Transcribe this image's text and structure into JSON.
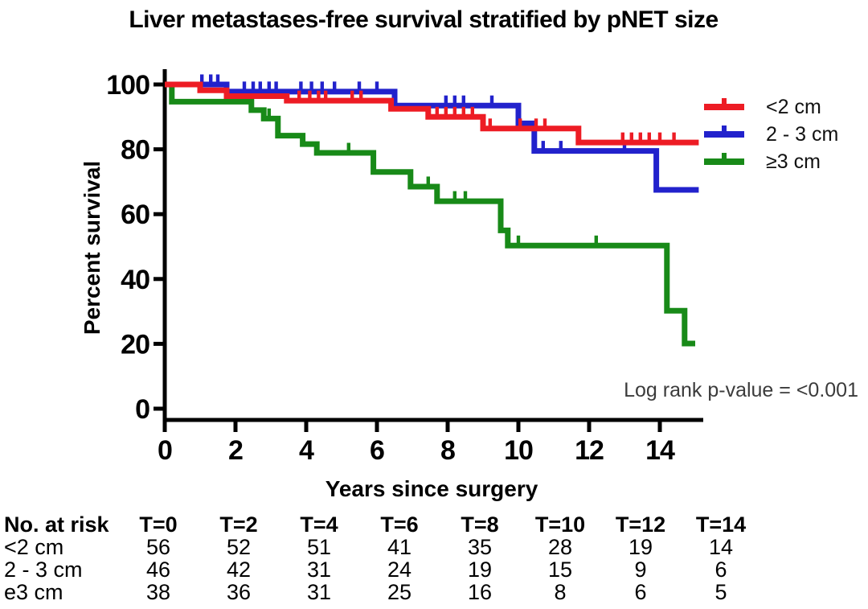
{
  "title": "Liver metastases-free survival stratified by pNET size",
  "chart_data": {
    "type": "line",
    "subtype": "kaplan-meier-step-curves",
    "title": "Liver metastases-free survival stratified by pNET size",
    "xlabel": "Years since surgery",
    "ylabel": "Percent survival",
    "xlim": [
      0,
      15.2
    ],
    "ylim": [
      0,
      100
    ],
    "xticks": [
      0,
      2,
      4,
      6,
      8,
      10,
      12,
      14
    ],
    "yticks": [
      0,
      20,
      40,
      60,
      80,
      100
    ],
    "grid": "off",
    "legend_position": "right-top",
    "annotation": "Log rank p-value = <0.001",
    "series": [
      {
        "label": "<2 cm",
        "color": "#ed1c24",
        "steps": [
          [
            0,
            100
          ],
          [
            1.0,
            98.2
          ],
          [
            1.75,
            96.4
          ],
          [
            3.45,
            95.0
          ],
          [
            6.4,
            92.5
          ],
          [
            7.45,
            90.0
          ],
          [
            9.0,
            86.4
          ],
          [
            11.7,
            82.1
          ]
        ],
        "end_time": 15.1,
        "censors": [
          [
            3.8,
            95.0
          ],
          [
            4.1,
            95.0
          ],
          [
            4.35,
            95.0
          ],
          [
            4.55,
            95.0
          ],
          [
            5.3,
            95.0
          ],
          [
            5.55,
            95.0
          ],
          [
            7.7,
            90.0
          ],
          [
            7.95,
            90.0
          ],
          [
            8.2,
            90.0
          ],
          [
            8.45,
            90.0
          ],
          [
            8.7,
            90.0
          ],
          [
            9.2,
            86.4
          ],
          [
            10.05,
            86.4
          ],
          [
            10.5,
            86.4
          ],
          [
            10.75,
            86.4
          ],
          [
            12.95,
            82.1
          ],
          [
            13.2,
            82.1
          ],
          [
            13.45,
            82.1
          ],
          [
            13.7,
            82.1
          ],
          [
            14.0,
            82.1
          ],
          [
            14.4,
            82.1
          ]
        ]
      },
      {
        "label": "2 - 3 cm",
        "color": "#2222cc",
        "steps": [
          [
            0,
            100
          ],
          [
            1.75,
            97.8
          ],
          [
            6.5,
            93.5
          ],
          [
            10.0,
            88.0
          ],
          [
            10.45,
            79.5
          ],
          [
            13.9,
            67.5
          ]
        ],
        "end_time": 15.1,
        "censors": [
          [
            1.05,
            100
          ],
          [
            1.3,
            100
          ],
          [
            1.5,
            100
          ],
          [
            2.25,
            97.8
          ],
          [
            2.5,
            97.8
          ],
          [
            2.7,
            97.8
          ],
          [
            2.95,
            97.8
          ],
          [
            3.15,
            97.8
          ],
          [
            3.85,
            97.8
          ],
          [
            4.15,
            97.8
          ],
          [
            4.45,
            97.8
          ],
          [
            4.8,
            97.8
          ],
          [
            5.5,
            97.8
          ],
          [
            6.0,
            97.8
          ],
          [
            7.95,
            93.5
          ],
          [
            8.2,
            93.5
          ],
          [
            8.45,
            93.5
          ],
          [
            9.25,
            93.5
          ],
          [
            10.7,
            79.5
          ],
          [
            11.2,
            79.5
          ],
          [
            13.0,
            79.5
          ]
        ]
      },
      {
        "label": "≥3 cm",
        "color": "#188a18",
        "steps": [
          [
            0,
            100
          ],
          [
            0.2,
            94.7
          ],
          [
            2.45,
            92.1
          ],
          [
            2.8,
            89.5
          ],
          [
            3.2,
            84.2
          ],
          [
            3.9,
            81.6
          ],
          [
            4.3,
            78.9
          ],
          [
            5.9,
            73.0
          ],
          [
            6.95,
            68.5
          ],
          [
            7.7,
            64.0
          ],
          [
            9.5,
            55.0
          ],
          [
            9.7,
            50.3
          ],
          [
            14.2,
            30.2
          ],
          [
            14.7,
            20.1
          ]
        ],
        "end_time": 15.0,
        "censors": [
          [
            2.95,
            89.5
          ],
          [
            5.2,
            78.9
          ],
          [
            7.45,
            68.5
          ],
          [
            8.2,
            64.0
          ],
          [
            8.5,
            64.0
          ],
          [
            10.0,
            50.3
          ],
          [
            12.2,
            50.3
          ]
        ]
      }
    ]
  },
  "risk_table": {
    "header_label": "No. at risk",
    "time_headers": [
      "T=0",
      "T=2",
      "T=4",
      "T=6",
      "T=8",
      "T=10",
      "T=12",
      "T=14"
    ],
    "rows": [
      {
        "label": "<2 cm",
        "values": [
          "56",
          "52",
          "51",
          "41",
          "35",
          "28",
          "19",
          "14"
        ]
      },
      {
        "label": "2 - 3 cm",
        "values": [
          "46",
          "42",
          "31",
          "24",
          "19",
          "15",
          "9",
          "6"
        ]
      },
      {
        "label": "e3 cm",
        "values": [
          "38",
          "36",
          "31",
          "25",
          "16",
          "8",
          "6",
          "5"
        ]
      }
    ]
  }
}
